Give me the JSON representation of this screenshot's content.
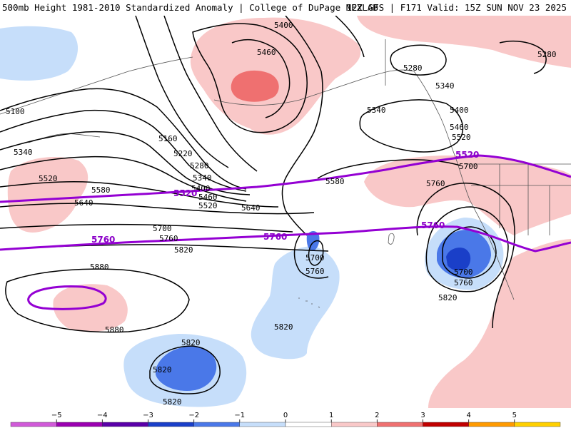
{
  "header": {
    "title_left": "500mb Height 1981-2010 Standardized Anomaly | College of DuPage NEXLAB",
    "title_right": "12Z GFS | F171 Valid: 15Z SUN NOV 23 2025"
  },
  "colors": {
    "anomaly_light_pink": "#f9c8c8",
    "anomaly_mid_red": "#ef7070",
    "anomaly_light_blue": "#c6defa",
    "anomaly_mid_blue": "#4a78e8",
    "anomaly_dark_blue": "#1a3fc8",
    "contour_line": "#000000",
    "climo_line": "#9400d3"
  },
  "height_labels": [
    "5400",
    "5460",
    "5100",
    "5160",
    "5220",
    "5280",
    "5340",
    "5400",
    "5460",
    "5520",
    "5340",
    "5520",
    "5580",
    "5640",
    "5700",
    "5760",
    "5820",
    "5880",
    "5880",
    "5280",
    "5280",
    "5340",
    "5340",
    "5400",
    "5460",
    "5520",
    "5580",
    "5640",
    "5700",
    "5760",
    "5700",
    "5760",
    "5820",
    "5700",
    "5760",
    "5820",
    "5820",
    "5820",
    "5820"
  ],
  "climo_labels": [
    "5520",
    "5520",
    "5760",
    "5760",
    "5760"
  ],
  "colorbar": {
    "ticks": [
      "−5",
      "−4",
      "−3",
      "−2",
      "−1",
      "0",
      "1",
      "2",
      "3",
      "4",
      "5"
    ],
    "colors": [
      "#d05ad8",
      "#9a00b0",
      "#5a00a8",
      "#1a3fc8",
      "#4a78e8",
      "#c6defa",
      "#ffffff",
      "#f9c8c8",
      "#ef7070",
      "#c00000",
      "#ff9a00",
      "#ffd000"
    ]
  }
}
